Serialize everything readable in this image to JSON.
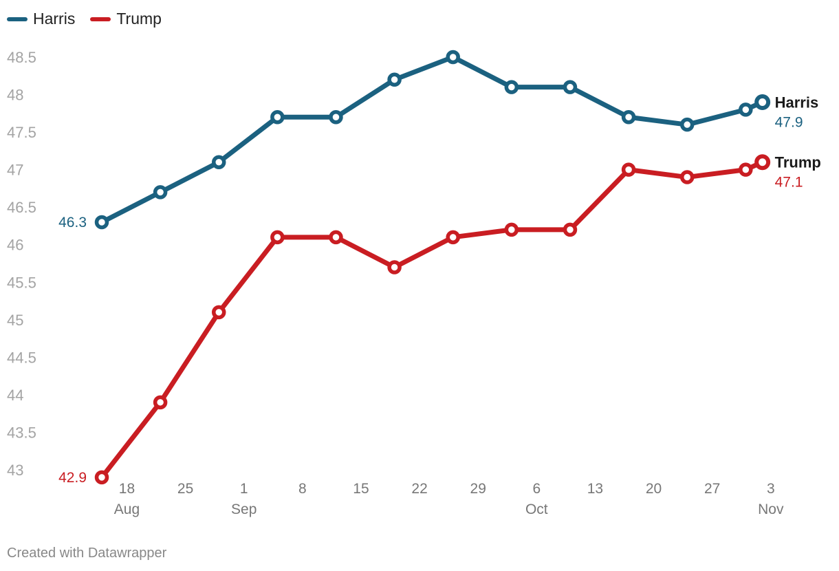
{
  "chart_data": {
    "type": "line",
    "title": "",
    "xlabel": "",
    "ylabel": "",
    "ylim": [
      43,
      48.5
    ],
    "y_ticks": [
      "48.5",
      "48",
      "47.5",
      "47",
      "46.5",
      "46",
      "45.5",
      "45",
      "44.5",
      "44",
      "43.5",
      "43"
    ],
    "x_ticks": [
      {
        "day": "18",
        "month": "Aug",
        "date": "2024-08-18"
      },
      {
        "day": "25",
        "month": "",
        "date": "2024-08-25"
      },
      {
        "day": "1",
        "month": "Sep",
        "date": "2024-09-01"
      },
      {
        "day": "8",
        "month": "",
        "date": "2024-09-08"
      },
      {
        "day": "15",
        "month": "",
        "date": "2024-09-15"
      },
      {
        "day": "22",
        "month": "",
        "date": "2024-09-22"
      },
      {
        "day": "29",
        "month": "",
        "date": "2024-09-29"
      },
      {
        "day": "6",
        "month": "Oct",
        "date": "2024-10-06"
      },
      {
        "day": "13",
        "month": "",
        "date": "2024-10-13"
      },
      {
        "day": "20",
        "month": "",
        "date": "2024-10-20"
      },
      {
        "day": "27",
        "month": "",
        "date": "2024-10-27"
      },
      {
        "day": "3",
        "month": "Nov",
        "date": "2024-11-03"
      }
    ],
    "x": [
      "2024-08-15",
      "2024-08-22",
      "2024-08-29",
      "2024-09-05",
      "2024-09-12",
      "2024-09-19",
      "2024-09-26",
      "2024-10-03",
      "2024-10-10",
      "2024-10-17",
      "2024-10-24",
      "2024-10-31",
      "2024-11-02"
    ],
    "series": [
      {
        "name": "Harris",
        "color": "#1b6180",
        "values": [
          46.3,
          46.7,
          47.1,
          47.7,
          47.7,
          48.2,
          48.5,
          48.1,
          48.1,
          47.7,
          47.6,
          47.8,
          47.9
        ],
        "start_label": "46.3",
        "end_name": "Harris",
        "end_value": "47.9"
      },
      {
        "name": "Trump",
        "color": "#c91d22",
        "values": [
          42.9,
          43.9,
          45.1,
          46.1,
          46.1,
          45.7,
          46.1,
          46.2,
          46.2,
          47.0,
          46.9,
          47.0,
          47.1
        ],
        "start_label": "42.9",
        "end_name": "Trump",
        "end_value": "47.1"
      }
    ]
  },
  "legend": [
    {
      "label": "Harris",
      "color": "#1b6180"
    },
    {
      "label": "Trump",
      "color": "#c91d22"
    }
  ],
  "footer": {
    "text": "Created with Datawrapper"
  }
}
